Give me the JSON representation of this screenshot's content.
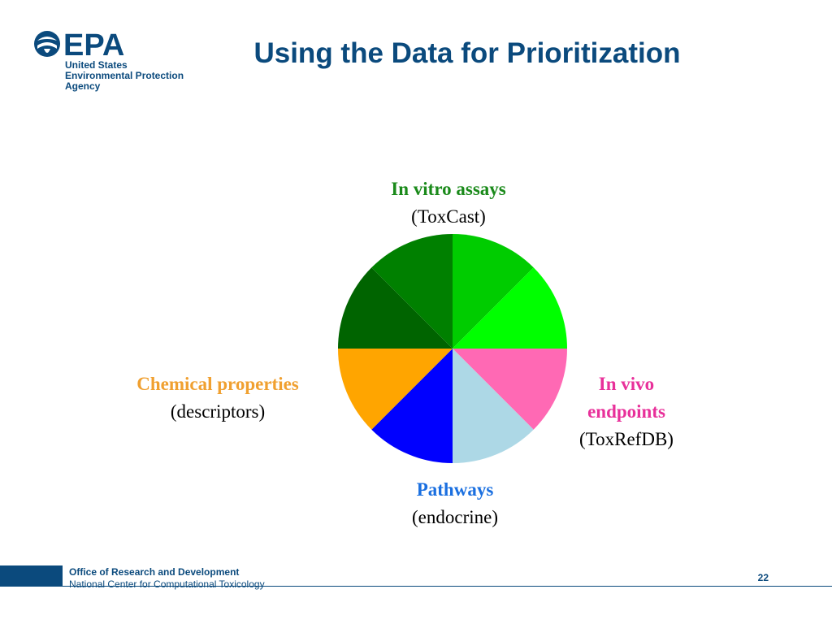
{
  "logo": {
    "wordmark": "EPA",
    "lines": [
      "United States",
      "Environmental Protection",
      "Agency"
    ]
  },
  "slide": {
    "title": "Using the Data for Prioritization"
  },
  "diagram": {
    "segments": [
      {
        "group": "in-vitro",
        "color": "#00cc00"
      },
      {
        "group": "in-vitro",
        "color": "#00ff00"
      },
      {
        "group": "in-vivo",
        "color": "#ff69b4"
      },
      {
        "group": "pathways",
        "color": "#add8e6"
      },
      {
        "group": "pathways",
        "color": "#0000ff"
      },
      {
        "group": "chemical",
        "color": "#ffa500"
      },
      {
        "group": "in-vitro",
        "color": "#006400"
      },
      {
        "group": "in-vitro",
        "color": "#008000"
      }
    ],
    "labels": {
      "in_vitro": {
        "head": "In vitro assays",
        "sub": "(ToxCast)",
        "color": "#1a8a1a"
      },
      "in_vivo": {
        "head1": "In vivo",
        "head2": "endpoints",
        "sub": "(ToxRefDB)",
        "color": "#e8309a"
      },
      "pathways": {
        "head": "Pathways",
        "sub": "(endocrine)",
        "color": "#1a6fe0"
      },
      "chemical": {
        "head": "Chemical properties",
        "sub": "(descriptors)",
        "color": "#f0a030"
      }
    }
  },
  "footer": {
    "line1": "Office of Research and Development",
    "line2": "National Center for Computational Toxicology",
    "page_number": "22"
  }
}
